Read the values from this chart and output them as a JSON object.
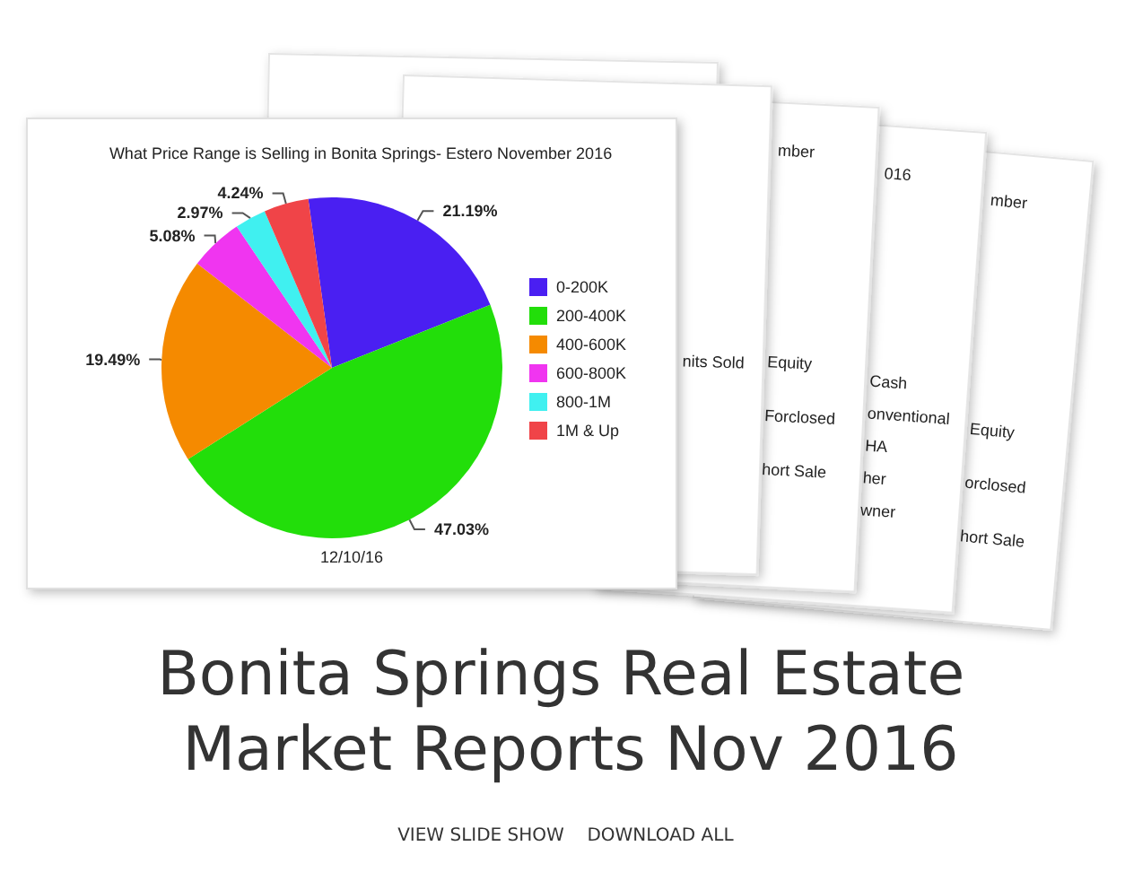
{
  "chart_data": {
    "type": "pie",
    "title": "What Price Range is Selling in Bonita Springs- Estero November 2016",
    "subtitle": "Bonita Springs Real Estate Market Reports Nov 2016",
    "categories": [
      "0-200K",
      "200-400K",
      "400-600K",
      "600-800K",
      "800-1M",
      "1M & Up"
    ],
    "values": [
      21.19,
      47.03,
      19.49,
      5.08,
      2.97,
      4.24
    ],
    "value_labels": [
      "21.19%",
      "47.03%",
      "19.49%",
      "5.08%",
      "2.97%",
      "4.24%"
    ],
    "colors": [
      "#4a1ff2",
      "#22de0a",
      "#f58a00",
      "#f035f0",
      "#40f0f0",
      "#f04448"
    ],
    "legend": "right",
    "annotations": [
      "12/10/16",
      "VIEW SLIDE SHOW",
      "DOWNLOAD ALL",
      "nits Sold",
      "mber",
      "Equity",
      "Forclosed",
      "hort Sale",
      "016",
      "Cash",
      "onventional",
      "HA",
      "her",
      "wner",
      "mber",
      "Equity",
      "orclosed",
      "hort Sale"
    ]
  }
}
